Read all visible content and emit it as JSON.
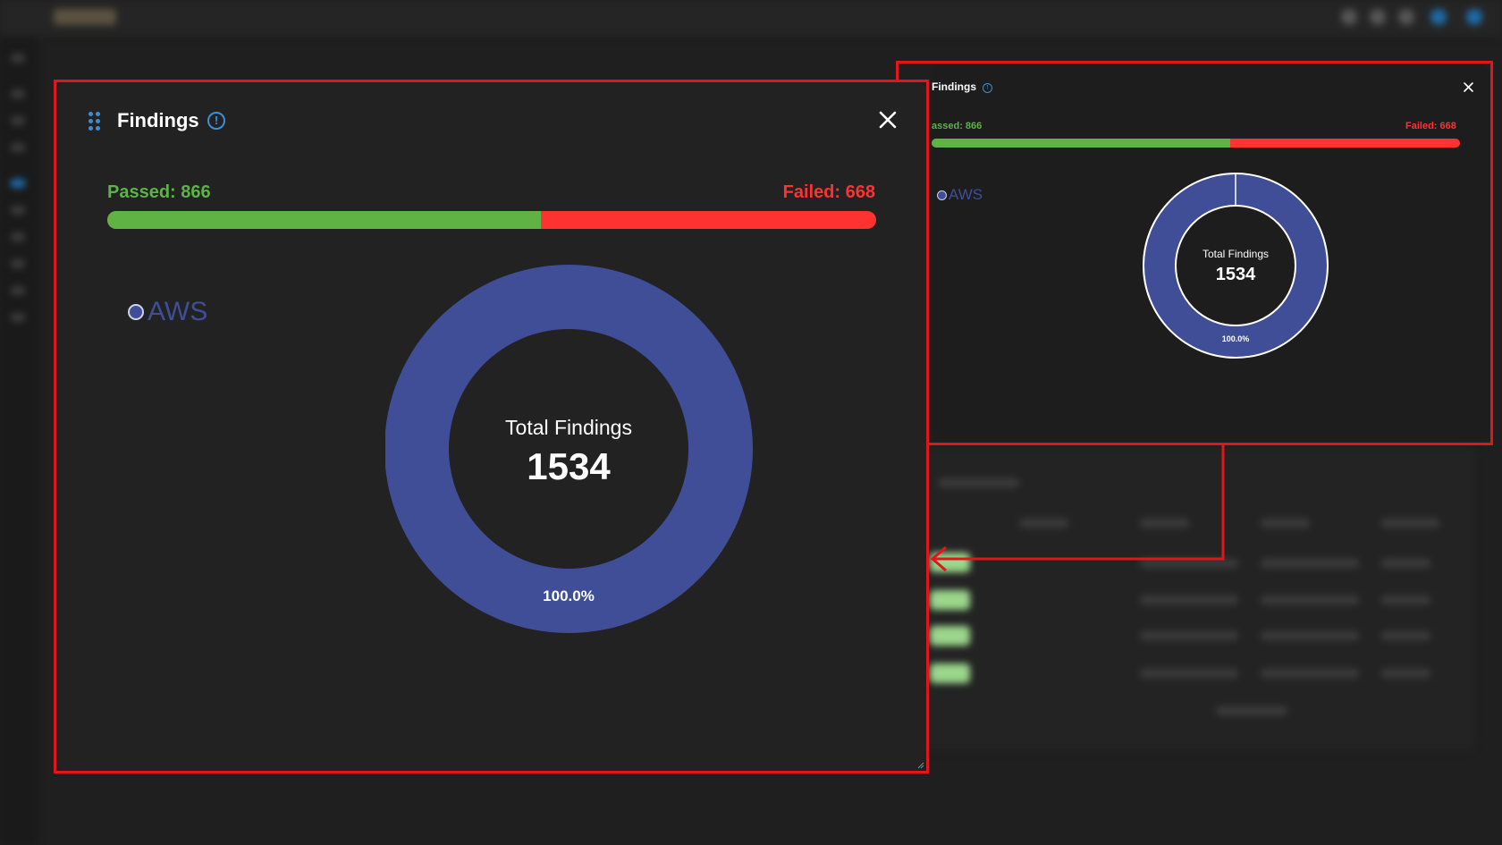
{
  "widget": {
    "title": "Findings",
    "passed_label": "Passed: 866",
    "failed_label": "Failed: 668",
    "legend_label": "AWS",
    "center_title": "Total Findings",
    "center_value": "1534",
    "slice_label": "100.0%",
    "passed_fraction": 0.5645
  },
  "small_widget": {
    "title": "Findings",
    "passed_label": "assed: 866",
    "failed_label": "Failed: 668",
    "legend_label": "AWS",
    "center_title": "Total Findings",
    "center_value": "1534",
    "slice_label": "100.0%"
  },
  "chart_data": {
    "type": "pie",
    "categories": [
      "AWS"
    ],
    "values": [
      1534
    ],
    "title": "",
    "center_text": "Total Findings 1534",
    "slice_labels": [
      "100.0%"
    ]
  },
  "colors": {
    "passed": "#5fb244",
    "failed": "#ff3232",
    "series_aws": "#3f4e97",
    "highlight": "#e0161b",
    "info": "#3b8fd6"
  },
  "icons": [
    "drag-handle-icon",
    "info-icon",
    "close-icon",
    "resize-icon"
  ]
}
